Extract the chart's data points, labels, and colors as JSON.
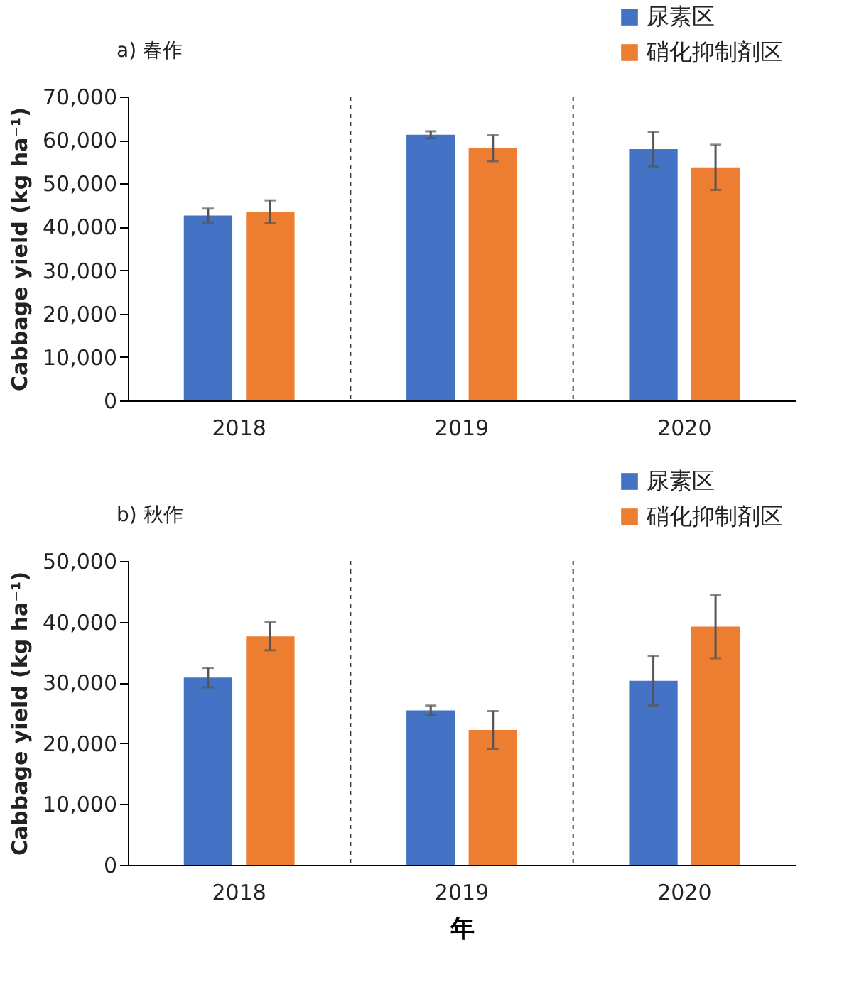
{
  "chart_data": [
    {
      "type": "bar",
      "title": "a) 春作",
      "ylabel": "Cabbage yield (kg ha⁻¹)",
      "categories": [
        "2018",
        "2019",
        "2020"
      ],
      "legend": "top right",
      "grid": false,
      "ylim": [
        0,
        70000
      ],
      "yticks": [
        0,
        {
          "value": 10000,
          "label": "10,000"
        },
        {
          "value": 20000,
          "label": "20,000"
        },
        {
          "value": 30000,
          "label": "30,000"
        },
        {
          "value": 40000,
          "label": "40,000"
        },
        {
          "value": 50000,
          "label": "50,000"
        },
        {
          "value": 60000,
          "label": "60,000"
        },
        {
          "value": 70000,
          "label": "70,000"
        }
      ],
      "series": [
        {
          "name": "尿素区",
          "color": "#4472c4",
          "values": [
            42600,
            61200,
            57900
          ],
          "errors": [
            1600,
            800,
            4000
          ]
        },
        {
          "name": "硝化抑制剤区",
          "color": "#ed7d31",
          "values": [
            43500,
            58100,
            53700
          ],
          "errors": [
            2600,
            3000,
            5200
          ]
        }
      ]
    },
    {
      "type": "bar",
      "title": "b) 秋作",
      "xlabel": "年",
      "ylabel": "Cabbage yield (kg ha⁻¹)",
      "categories": [
        "2018",
        "2019",
        "2020"
      ],
      "legend": "top right",
      "grid": false,
      "ylim": [
        0,
        50000
      ],
      "yticks": [
        0,
        {
          "value": 10000,
          "label": "10,000"
        },
        {
          "value": 20000,
          "label": "20,000"
        },
        {
          "value": 30000,
          "label": "30,000"
        },
        {
          "value": 40000,
          "label": "40,000"
        },
        {
          "value": 50000,
          "label": "50,000"
        }
      ],
      "series": [
        {
          "name": "尿素区",
          "color": "#4472c4",
          "values": [
            30800,
            25400,
            30300
          ],
          "errors": [
            1600,
            800,
            4100
          ]
        },
        {
          "name": "硝化抑制剤区",
          "color": "#ed7d31",
          "values": [
            37600,
            22200,
            39200
          ],
          "errors": [
            2300,
            3100,
            5200
          ]
        }
      ]
    }
  ]
}
